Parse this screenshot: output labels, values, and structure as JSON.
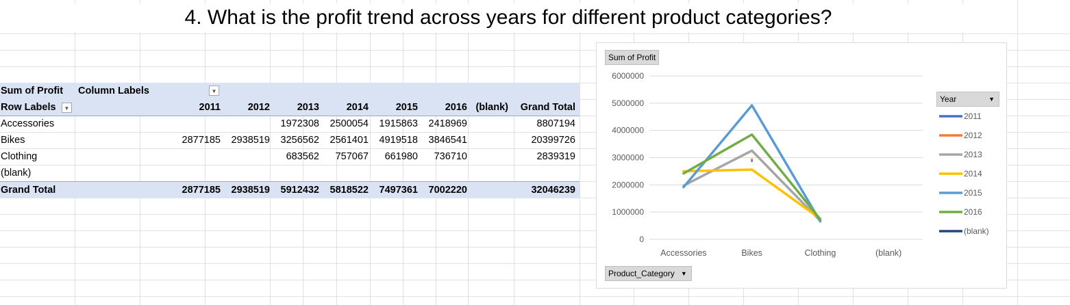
{
  "title": "4. What is the profit trend across years for different product categories?",
  "pivot": {
    "corner_value_label": "Sum of Profit",
    "column_labels": "Column Labels",
    "row_labels": "Row Labels",
    "columns": [
      "2011",
      "2012",
      "2013",
      "2014",
      "2015",
      "2016",
      "(blank)",
      "Grand Total"
    ],
    "rows": [
      {
        "label": "Accessories",
        "cells": [
          "",
          "",
          "1972308",
          "2500054",
          "1915863",
          "2418969",
          "",
          "8807194"
        ]
      },
      {
        "label": "Bikes",
        "cells": [
          "2877185",
          "2938519",
          "3256562",
          "2561401",
          "4919518",
          "3846541",
          "",
          "20399726"
        ]
      },
      {
        "label": "Clothing",
        "cells": [
          "",
          "",
          "683562",
          "757067",
          "661980",
          "736710",
          "",
          "2839319"
        ]
      },
      {
        "label": "(blank)",
        "cells": [
          "",
          "",
          "",
          "",
          "",
          "",
          "",
          ""
        ]
      }
    ],
    "grand_total": {
      "label": "Grand Total",
      "cells": [
        "2877185",
        "2938519",
        "5912432",
        "5818522",
        "7497361",
        "7002220",
        "",
        "32046239"
      ]
    }
  },
  "chart_buttons": {
    "value_field": "Sum of Profit",
    "axis_field": "Product_Category",
    "legend_field": "Year"
  },
  "chart_data": {
    "type": "line",
    "categories": [
      "Accessories",
      "Bikes",
      "Clothing",
      "(blank)"
    ],
    "ylim": [
      0,
      6000000
    ],
    "yticks": [
      "0",
      "1000000",
      "2000000",
      "3000000",
      "4000000",
      "5000000",
      "6000000"
    ],
    "legend_title": "Year",
    "legend_position": "right",
    "series": [
      {
        "name": "2011",
        "color": "#4472c4",
        "values": [
          null,
          2877185,
          null,
          null
        ]
      },
      {
        "name": "2012",
        "color": "#ed7d31",
        "values": [
          null,
          2938519,
          null,
          null
        ]
      },
      {
        "name": "2013",
        "color": "#a5a5a5",
        "values": [
          1972308,
          3256562,
          683562,
          null
        ]
      },
      {
        "name": "2014",
        "color": "#ffc000",
        "values": [
          2500054,
          2561401,
          757067,
          null
        ]
      },
      {
        "name": "2015",
        "color": "#5b9bd5",
        "values": [
          1915863,
          4919518,
          661980,
          null
        ]
      },
      {
        "name": "2016",
        "color": "#70ad47",
        "values": [
          2418969,
          3846541,
          736710,
          null
        ]
      },
      {
        "name": "(blank)",
        "color": "#264478",
        "values": [
          null,
          null,
          null,
          null
        ]
      }
    ]
  }
}
